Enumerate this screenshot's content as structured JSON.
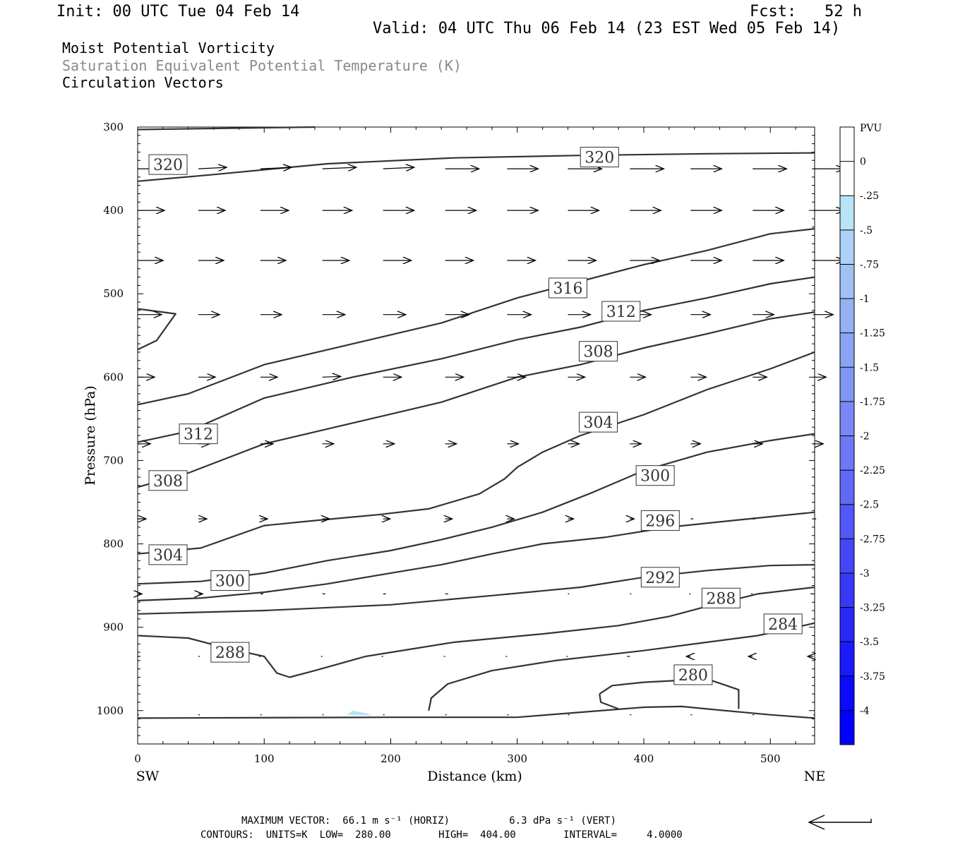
{
  "header": {
    "init": "Init: 00 UTC Tue 04 Feb 14",
    "fcst": "Fcst:   52 h",
    "valid": "Valid: 04 UTC Thu 06 Feb 14 (23 EST Wed 05 Feb 14)"
  },
  "titles": [
    "Moist Potential Vorticity",
    "Saturation Equivalent Potential Temperature (K)",
    "Circulation Vectors"
  ],
  "footer": {
    "line1": "MAXIMUM VECTOR:  66.1 m s⁻¹ (HORIZ)          6.3 dPa s⁻¹ (VERT)",
    "line2": "CONTOURS:  UNITS=K  LOW=  280.00        HIGH=  404.00        INTERVAL=     4.0000"
  },
  "colors": {
    "contour": "#333333",
    "vector": "#000000",
    "neg_pv_patch": "#b8e4f7"
  },
  "chart_data": {
    "type": "cross-section",
    "xlabel": "Distance (km)",
    "ylabel": "Pressure (hPa)",
    "xlim": [
      0,
      535
    ],
    "ylim": [
      1040,
      300
    ],
    "x_ticks": [
      0,
      100,
      200,
      300,
      400,
      500
    ],
    "y_ticks": [
      300,
      400,
      500,
      600,
      700,
      800,
      900,
      1000
    ],
    "x_end_labels": {
      "left": "SW",
      "right": "NE"
    },
    "colorbar": {
      "title": "PVU",
      "levels": [
        "0",
        "-.25",
        "-.5",
        "-.75",
        "-1",
        "-1.25",
        "-1.5",
        "-1.75",
        "-2",
        "-2.25",
        "-2.5",
        "-2.75",
        "-3",
        "-3.25",
        "-3.5",
        "-3.75",
        "-4"
      ],
      "colors": [
        "#ffffff",
        "#ffffff",
        "#b8e4f7",
        "#acd1f6",
        "#a0c1f4",
        "#94b1f3",
        "#8aa4f3",
        "#8096f4",
        "#7a87f5",
        "#6e78f6",
        "#6068f6",
        "#5257f7",
        "#4547f7",
        "#3838f8",
        "#2828f9",
        "#1a1afa",
        "#0a0afd",
        "#0000fe"
      ]
    },
    "contours": [
      {
        "value": 320,
        "points": [
          [
            0,
            365
          ],
          [
            60,
            357
          ],
          [
            150,
            344
          ],
          [
            250,
            337
          ],
          [
            350,
            334
          ],
          [
            450,
            332
          ],
          [
            535,
            331
          ]
        ]
      },
      {
        "value": 316,
        "points": [
          [
            0,
            633
          ],
          [
            40,
            620
          ],
          [
            100,
            585
          ],
          [
            170,
            560
          ],
          [
            240,
            535
          ],
          [
            300,
            505
          ],
          [
            350,
            485
          ],
          [
            400,
            465
          ],
          [
            450,
            448
          ],
          [
            500,
            428
          ],
          [
            535,
            422
          ]
        ]
      },
      {
        "value": 312,
        "points": [
          [
            0,
            678
          ],
          [
            40,
            665
          ],
          [
            100,
            625
          ],
          [
            170,
            600
          ],
          [
            240,
            578
          ],
          [
            300,
            555
          ],
          [
            350,
            540
          ],
          [
            400,
            520
          ],
          [
            450,
            505
          ],
          [
            500,
            488
          ],
          [
            535,
            480
          ]
        ]
      },
      {
        "value": 308,
        "points": [
          [
            0,
            732
          ],
          [
            40,
            715
          ],
          [
            100,
            680
          ],
          [
            170,
            655
          ],
          [
            240,
            630
          ],
          [
            300,
            600
          ],
          [
            350,
            585
          ],
          [
            400,
            565
          ],
          [
            450,
            548
          ],
          [
            500,
            530
          ],
          [
            535,
            522
          ]
        ]
      },
      {
        "value": 304,
        "points": [
          [
            0,
            812
          ],
          [
            50,
            805
          ],
          [
            100,
            778
          ],
          [
            140,
            772
          ],
          [
            190,
            765
          ],
          [
            230,
            758
          ],
          [
            270,
            740
          ],
          [
            290,
            722
          ],
          [
            300,
            708
          ],
          [
            320,
            690
          ],
          [
            350,
            670
          ],
          [
            400,
            645
          ],
          [
            450,
            615
          ],
          [
            500,
            590
          ],
          [
            535,
            570
          ]
        ]
      },
      {
        "value": 300,
        "points": [
          [
            0,
            848
          ],
          [
            50,
            845
          ],
          [
            100,
            835
          ],
          [
            150,
            820
          ],
          [
            200,
            808
          ],
          [
            240,
            795
          ],
          [
            280,
            780
          ],
          [
            320,
            762
          ],
          [
            360,
            738
          ],
          [
            400,
            712
          ],
          [
            450,
            690
          ],
          [
            500,
            676
          ],
          [
            535,
            668
          ]
        ]
      },
      {
        "value": 296,
        "points": [
          [
            0,
            868
          ],
          [
            50,
            865
          ],
          [
            100,
            858
          ],
          [
            150,
            848
          ],
          [
            200,
            835
          ],
          [
            240,
            825
          ],
          [
            280,
            812
          ],
          [
            320,
            800
          ],
          [
            370,
            792
          ],
          [
            420,
            780
          ],
          [
            470,
            772
          ],
          [
            535,
            762
          ]
        ]
      },
      {
        "value": 292,
        "points": [
          [
            0,
            884
          ],
          [
            100,
            880
          ],
          [
            200,
            873
          ],
          [
            280,
            862
          ],
          [
            350,
            852
          ],
          [
            400,
            840
          ],
          [
            450,
            832
          ],
          [
            500,
            826
          ],
          [
            535,
            825
          ]
        ]
      },
      {
        "value": 288,
        "points": [
          [
            0,
            910
          ],
          [
            40,
            913
          ],
          [
            70,
            925
          ],
          [
            100,
            935
          ],
          [
            110,
            955
          ],
          [
            120,
            960
          ],
          [
            140,
            952
          ],
          [
            180,
            935
          ],
          [
            250,
            918
          ],
          [
            320,
            908
          ],
          [
            380,
            898
          ],
          [
            420,
            887
          ],
          [
            450,
            875
          ],
          [
            490,
            860
          ],
          [
            535,
            852
          ]
        ]
      },
      {
        "value": 284,
        "points": [
          [
            230,
            1000
          ],
          [
            232,
            985
          ],
          [
            245,
            968
          ],
          [
            280,
            952
          ],
          [
            330,
            940
          ],
          [
            400,
            928
          ],
          [
            450,
            918
          ],
          [
            490,
            910
          ],
          [
            515,
            902
          ],
          [
            535,
            895
          ]
        ]
      },
      {
        "value": 280,
        "points": [
          [
            365,
            980
          ],
          [
            375,
            970
          ],
          [
            400,
            966
          ],
          [
            450,
            962
          ],
          [
            475,
            975
          ],
          [
            475,
            998
          ]
        ]
      },
      {
        "value": 280,
        "points": [
          [
            365,
            980
          ],
          [
            366,
            990
          ],
          [
            380,
            998
          ]
        ]
      },
      {
        "value": 1000,
        "points": [
          [
            0,
            1009
          ],
          [
            200,
            1008
          ],
          [
            300,
            1008
          ],
          [
            400,
            996
          ],
          [
            430,
            995
          ],
          [
            450,
            998
          ],
          [
            500,
            1005
          ],
          [
            535,
            1009
          ]
        ]
      },
      {
        "value": 300,
        "points": [
          [
            0,
            518
          ],
          [
            30,
            524
          ],
          [
            15,
            556
          ],
          [
            0,
            567
          ]
        ]
      },
      {
        "value": 300,
        "points": [
          [
            0,
            303
          ],
          [
            140,
            300
          ]
        ]
      }
    ],
    "contour_labels": [
      {
        "text": "320",
        "x": 24,
        "y": 345
      },
      {
        "text": "320",
        "x": 365,
        "y": 336
      },
      {
        "text": "316",
        "x": 340,
        "y": 493
      },
      {
        "text": "312",
        "x": 382,
        "y": 521
      },
      {
        "text": "312",
        "x": 48,
        "y": 668
      },
      {
        "text": "308",
        "x": 364,
        "y": 569
      },
      {
        "text": "308",
        "x": 24,
        "y": 724
      },
      {
        "text": "304",
        "x": 364,
        "y": 654
      },
      {
        "text": "304",
        "x": 24,
        "y": 813
      },
      {
        "text": "300",
        "x": 409,
        "y": 718
      },
      {
        "text": "300",
        "x": 73,
        "y": 844
      },
      {
        "text": "296",
        "x": 413,
        "y": 772
      },
      {
        "text": "292",
        "x": 413,
        "y": 840
      },
      {
        "text": "288",
        "x": 461,
        "y": 865
      },
      {
        "text": "288",
        "x": 73,
        "y": 930
      },
      {
        "text": "284",
        "x": 510,
        "y": 896
      },
      {
        "text": "280",
        "x": 439,
        "y": 957
      }
    ],
    "vectors": {
      "levels": [
        350,
        400,
        460,
        525,
        600,
        680,
        770,
        860,
        935,
        1005
      ],
      "x_positions": [
        0,
        48,
        97,
        146,
        194,
        243,
        292,
        340,
        389,
        437,
        486,
        534
      ],
      "u": [
        [
          40,
          40,
          44,
          48,
          44,
          48,
          44,
          48,
          48,
          44,
          48,
          44
        ],
        [
          38,
          38,
          40,
          42,
          44,
          44,
          44,
          44,
          44,
          44,
          44,
          44
        ],
        [
          36,
          36,
          36,
          38,
          40,
          40,
          40,
          40,
          42,
          44,
          44,
          44
        ],
        [
          34,
          30,
          30,
          32,
          32,
          34,
          34,
          32,
          30,
          28,
          30,
          28
        ],
        [
          24,
          24,
          24,
          26,
          26,
          26,
          26,
          24,
          22,
          22,
          20,
          18
        ],
        [
          18,
          16,
          18,
          16,
          16,
          16,
          16,
          16,
          16,
          14,
          14,
          14
        ],
        [
          12,
          12,
          10,
          10,
          10,
          10,
          10,
          8,
          6,
          4,
          4,
          4
        ],
        [
          6,
          6,
          4,
          4,
          4,
          4,
          2,
          2,
          2,
          -2,
          -2,
          -4
        ],
        [
          4,
          2,
          -2,
          -2,
          -2,
          -2,
          -2,
          -2,
          -4,
          -6,
          -6,
          -8
        ],
        [
          2,
          2,
          2,
          2,
          2,
          2,
          2,
          2,
          2,
          2,
          2,
          2
        ]
      ],
      "w": [
        [
          0,
          -2,
          -2,
          -2,
          -2,
          0,
          0,
          0,
          0,
          0,
          0,
          0
        ],
        [
          0,
          0,
          0,
          0,
          0,
          0,
          0,
          0,
          0,
          0,
          0,
          0
        ],
        [
          0,
          0,
          0,
          0,
          0,
          0,
          0,
          0,
          0,
          0,
          0,
          0
        ],
        [
          0,
          0,
          0,
          0,
          0,
          0,
          0,
          0,
          0,
          0,
          0,
          0
        ],
        [
          0,
          0,
          0,
          -1,
          0,
          0,
          0,
          0,
          0,
          0,
          0,
          0
        ],
        [
          0,
          0,
          0,
          0,
          0,
          0,
          0,
          0,
          0,
          0,
          0,
          0
        ],
        [
          0,
          0,
          0,
          0,
          0,
          0,
          0,
          0,
          0,
          0,
          0,
          0
        ],
        [
          0,
          0,
          0,
          0,
          0,
          0,
          0,
          0,
          0,
          0,
          0,
          0
        ],
        [
          0,
          0,
          0,
          0,
          0,
          0,
          0,
          0,
          0,
          0,
          0,
          0
        ],
        [
          0,
          0,
          0,
          0,
          0,
          0,
          0,
          0,
          0,
          0,
          0,
          0
        ]
      ]
    },
    "negative_pv_patches": [
      {
        "points": [
          [
            165,
            1005
          ],
          [
            170,
            1000
          ],
          [
            180,
            1003
          ],
          [
            186,
            1006
          ]
        ]
      }
    ]
  }
}
